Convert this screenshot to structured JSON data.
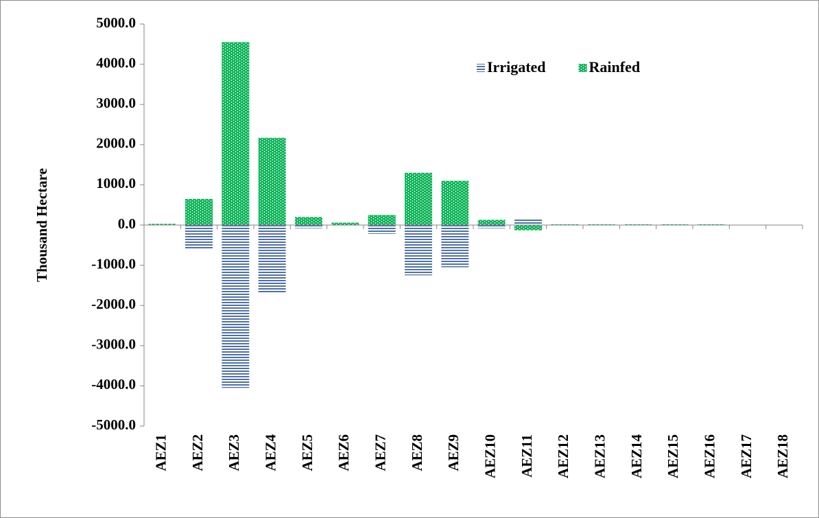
{
  "chart_data": {
    "type": "bar",
    "y_label": "Thousand  Hectare",
    "categories": [
      "AEZ1",
      "AEZ2",
      "AEZ3",
      "AEZ4",
      "AEZ5",
      "AEZ6",
      "AEZ7",
      "AEZ8",
      "AEZ9",
      "AEZ10",
      "AEZ11",
      "AEZ12",
      "AEZ13",
      "AEZ14",
      "AEZ15",
      "AEZ16",
      "AEZ17",
      "AEZ18"
    ],
    "series": [
      {
        "name": "Irrigated",
        "color": "#4f6fa8",
        "values": [
          0,
          -600,
          -4050,
          -1700,
          -80,
          -10,
          -220,
          -1250,
          -1050,
          -80,
          150,
          0,
          0,
          0,
          0,
          0,
          0,
          0
        ]
      },
      {
        "name": "Rainfed",
        "color": "#00b050",
        "values": [
          30,
          650,
          4550,
          2170,
          200,
          60,
          250,
          1300,
          1100,
          130,
          -130,
          20,
          20,
          20,
          20,
          20,
          0,
          0
        ]
      }
    ],
    "ylim": [
      -5000,
      5000
    ],
    "yticks": [
      {
        "value": -5000,
        "label": "-5000.0"
      },
      {
        "value": -4000,
        "label": "-4000.0"
      },
      {
        "value": -3000,
        "label": "-3000.0"
      },
      {
        "value": -2000,
        "label": "-2000.0"
      },
      {
        "value": -1000,
        "label": "-1000.0"
      },
      {
        "value": 0,
        "label": "0.0"
      },
      {
        "value": 1000,
        "label": "1000.0"
      },
      {
        "value": 2000,
        "label": "2000.0"
      },
      {
        "value": 3000,
        "label": "3000.0"
      },
      {
        "value": 4000,
        "label": "4000.0"
      },
      {
        "value": 5000,
        "label": "5000.0"
      }
    ],
    "grid": false,
    "legend": "top-right"
  }
}
